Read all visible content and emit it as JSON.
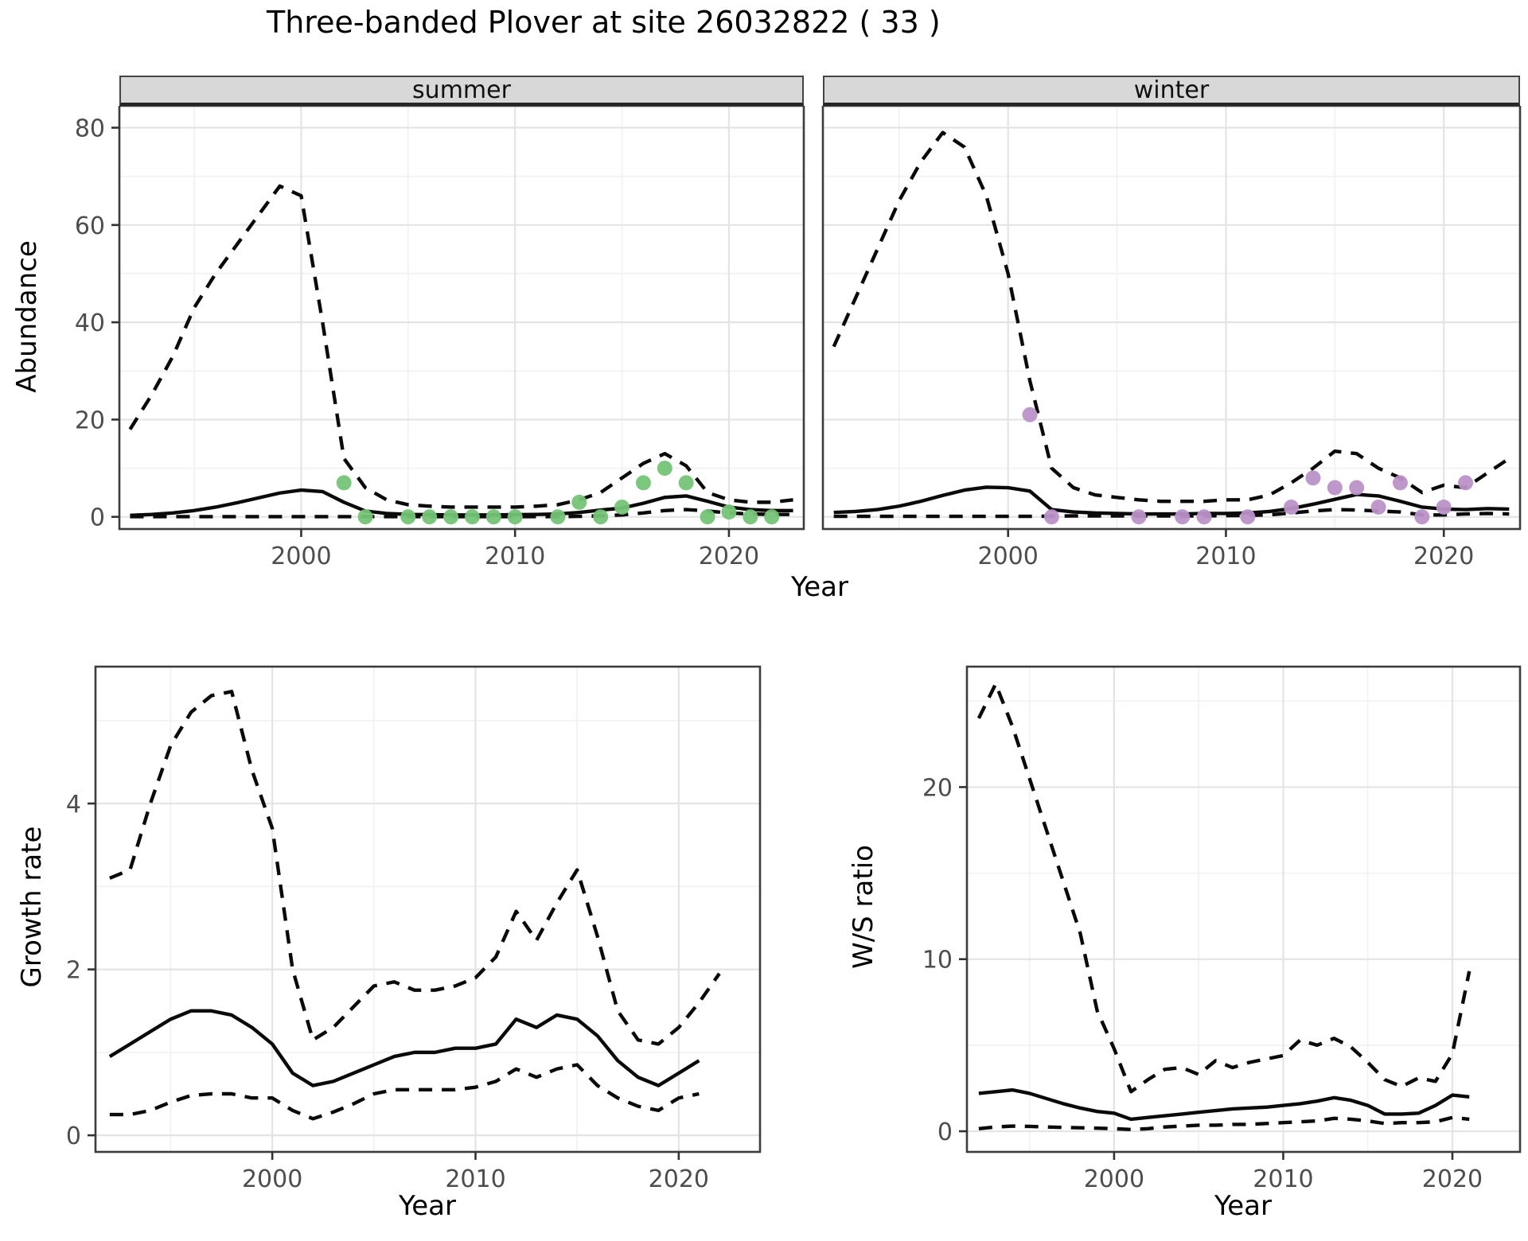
{
  "title": "Three-banded Plover at site 26032822 ( 33 )",
  "colors": {
    "summer_point": "#74C476",
    "winter_point": "#BA92C7",
    "line": "#0a0a0a",
    "grid_major": "#e4e4e4",
    "grid_minor": "#f1f1f1",
    "strip_bg": "#d8d8d8",
    "panel_border": "#3c3c3c",
    "axis_text": "#4d4d4d"
  },
  "chart_data": [
    {
      "type": "line",
      "facet_label": "summer",
      "xlabel": "Year",
      "ylabel": "Abundance",
      "xlim": [
        1991.5,
        2023.5
      ],
      "ylim": [
        -2.5,
        84.5
      ],
      "xticks": [
        2000,
        2010,
        2020
      ],
      "xticks_minor": [
        1995,
        2005,
        2015
      ],
      "yticks": [
        0,
        20,
        40,
        60,
        80
      ],
      "yticks_minor": [
        10,
        30,
        50,
        70
      ],
      "grid": true,
      "legend": "none",
      "series": [
        {
          "name": "ci_upper",
          "line": "dashed",
          "x": [
            1992,
            1993,
            1994,
            1995,
            1996,
            1997,
            1998,
            1999,
            2000,
            2001,
            2002,
            2003,
            2004,
            2005,
            2006,
            2007,
            2008,
            2009,
            2010,
            2011,
            2012,
            2013,
            2014,
            2015,
            2016,
            2017,
            2018,
            2019,
            2020,
            2021,
            2022,
            2023
          ],
          "y": [
            18,
            25,
            33,
            43,
            50,
            56,
            62,
            68,
            66,
            40,
            12,
            6,
            3.5,
            2.5,
            2.2,
            2,
            2,
            2,
            2,
            2.2,
            2.5,
            3.5,
            5,
            8,
            11,
            13,
            10.5,
            5,
            3.5,
            3,
            3,
            3.5
          ]
        },
        {
          "name": "estimate",
          "line": "solid",
          "x": [
            1992,
            1993,
            1994,
            1995,
            1996,
            1997,
            1998,
            1999,
            2000,
            2001,
            2002,
            2003,
            2004,
            2005,
            2006,
            2007,
            2008,
            2009,
            2010,
            2011,
            2012,
            2013,
            2014,
            2015,
            2016,
            2017,
            2018,
            2019,
            2020,
            2021,
            2022,
            2023
          ],
          "y": [
            0.3,
            0.5,
            0.8,
            1.3,
            2,
            2.9,
            3.9,
            4.9,
            5.5,
            5.2,
            3,
            1.2,
            0.7,
            0.5,
            0.45,
            0.4,
            0.4,
            0.4,
            0.45,
            0.5,
            0.6,
            0.9,
            1.4,
            1.8,
            2.8,
            4,
            4.3,
            3.2,
            2,
            1.5,
            1.3,
            1.3
          ]
        },
        {
          "name": "ci_lower",
          "line": "dashed",
          "x": [
            1992,
            1993,
            1994,
            1995,
            1996,
            1997,
            1998,
            1999,
            2000,
            2001,
            2002,
            2003,
            2004,
            2005,
            2006,
            2007,
            2008,
            2009,
            2010,
            2011,
            2012,
            2013,
            2014,
            2015,
            2016,
            2017,
            2018,
            2019,
            2020,
            2021,
            2022,
            2023
          ],
          "y": [
            0.05,
            0.05,
            0.05,
            0.05,
            0.05,
            0.05,
            0.05,
            0.05,
            0.05,
            0.05,
            0.05,
            0.05,
            0.05,
            0.05,
            0.05,
            0.05,
            0.05,
            0.05,
            0.05,
            0.05,
            0.05,
            0.1,
            0.2,
            0.4,
            0.8,
            1.3,
            1.5,
            1.2,
            0.8,
            0.6,
            0.5,
            0.5
          ]
        }
      ],
      "points": {
        "name": "observed_counts",
        "color": "#74C476",
        "x": [
          2002,
          2003,
          2005,
          2006,
          2007,
          2008,
          2009,
          2010,
          2012,
          2013,
          2014,
          2015,
          2016,
          2017,
          2018,
          2019,
          2020,
          2021,
          2022
        ],
        "y": [
          7,
          0,
          0,
          0,
          0,
          0,
          0,
          0,
          0,
          3,
          0,
          2,
          7,
          10,
          7,
          0,
          1,
          0,
          0
        ]
      }
    },
    {
      "type": "line",
      "facet_label": "winter",
      "xlabel": "Year",
      "ylabel": "Abundance",
      "xlim": [
        1991.5,
        2023.5
      ],
      "ylim": [
        -2.5,
        84.5
      ],
      "xticks": [
        2000,
        2010,
        2020
      ],
      "xticks_minor": [
        1995,
        2005,
        2015
      ],
      "yticks": [
        0,
        20,
        40,
        60,
        80
      ],
      "yticks_minor": [
        10,
        30,
        50,
        70
      ],
      "grid": true,
      "legend": "none",
      "series": [
        {
          "name": "ci_upper",
          "line": "dashed",
          "x": [
            1992,
            1993,
            1994,
            1995,
            1996,
            1997,
            1998,
            1999,
            2000,
            2001,
            2002,
            2003,
            2004,
            2005,
            2006,
            2007,
            2008,
            2009,
            2010,
            2011,
            2012,
            2013,
            2014,
            2015,
            2016,
            2017,
            2018,
            2019,
            2020,
            2021,
            2022,
            2023
          ],
          "y": [
            35,
            45,
            55,
            65,
            73,
            79,
            76,
            66,
            50,
            28,
            10,
            6,
            4.5,
            4,
            3.5,
            3.2,
            3.2,
            3.2,
            3.5,
            3.5,
            4.5,
            7,
            10,
            13.5,
            13,
            10,
            8,
            5,
            6.5,
            6,
            9,
            12
          ]
        },
        {
          "name": "estimate",
          "line": "solid",
          "x": [
            1992,
            1993,
            1994,
            1995,
            1996,
            1997,
            1998,
            1999,
            2000,
            2001,
            2002,
            2003,
            2004,
            2005,
            2006,
            2007,
            2008,
            2009,
            2010,
            2011,
            2012,
            2013,
            2014,
            2015,
            2016,
            2017,
            2018,
            2019,
            2020,
            2021,
            2022,
            2023
          ],
          "y": [
            0.9,
            1.1,
            1.5,
            2.2,
            3.2,
            4.4,
            5.5,
            6.1,
            6,
            5.3,
            1.5,
            1,
            0.8,
            0.7,
            0.6,
            0.6,
            0.6,
            0.7,
            0.7,
            0.8,
            1.1,
            1.7,
            2.6,
            3.6,
            4.6,
            4.3,
            3.2,
            2,
            1.6,
            1.5,
            1.7,
            1.6
          ]
        },
        {
          "name": "ci_lower",
          "line": "dashed",
          "x": [
            1992,
            1993,
            1994,
            1995,
            1996,
            1997,
            1998,
            1999,
            2000,
            2001,
            2002,
            2003,
            2004,
            2005,
            2006,
            2007,
            2008,
            2009,
            2010,
            2011,
            2012,
            2013,
            2014,
            2015,
            2016,
            2017,
            2018,
            2019,
            2020,
            2021,
            2022,
            2023
          ],
          "y": [
            0.1,
            0.1,
            0.1,
            0.1,
            0.1,
            0.1,
            0.1,
            0.1,
            0.1,
            0.1,
            0.15,
            0.2,
            0.2,
            0.2,
            0.2,
            0.2,
            0.2,
            0.2,
            0.25,
            0.3,
            0.4,
            0.8,
            1.2,
            1.5,
            1.4,
            1.2,
            1,
            0.4,
            0.4,
            0.6,
            0.7,
            0.6
          ]
        }
      ],
      "points": {
        "name": "observed_counts",
        "color": "#BA92C7",
        "x": [
          2001,
          2002,
          2006,
          2008,
          2009,
          2011,
          2013,
          2014,
          2015,
          2016,
          2017,
          2018,
          2019,
          2020,
          2021
        ],
        "y": [
          21,
          0,
          0,
          0,
          0,
          0,
          2,
          8,
          6,
          6,
          2,
          7,
          0,
          2,
          7
        ]
      }
    },
    {
      "type": "line",
      "facet_label": "",
      "xlabel": "Year",
      "ylabel": "Growth rate",
      "xlim": [
        1991.3,
        2024
      ],
      "ylim": [
        -0.2,
        5.65
      ],
      "xticks": [
        2000,
        2010,
        2020
      ],
      "xticks_minor": [
        1995,
        2005,
        2015
      ],
      "yticks": [
        0,
        2,
        4
      ],
      "yticks_minor": [
        1,
        3,
        5
      ],
      "grid": true,
      "legend": "none",
      "series": [
        {
          "name": "ci_upper",
          "line": "dashed",
          "x": [
            1992,
            1993,
            1994,
            1995,
            1996,
            1997,
            1998,
            1999,
            2000,
            2001,
            2002,
            2003,
            2004,
            2005,
            2006,
            2007,
            2008,
            2009,
            2010,
            2011,
            2012,
            2013,
            2014,
            2015,
            2016,
            2017,
            2018,
            2019,
            2020,
            2021,
            2022
          ],
          "y": [
            3.1,
            3.2,
            4.0,
            4.7,
            5.1,
            5.3,
            5.35,
            4.4,
            3.7,
            2.0,
            1.15,
            1.3,
            1.55,
            1.8,
            1.85,
            1.75,
            1.75,
            1.8,
            1.9,
            2.15,
            2.7,
            2.35,
            2.8,
            3.2,
            2.4,
            1.5,
            1.15,
            1.1,
            1.3,
            1.6,
            1.95
          ]
        },
        {
          "name": "estimate",
          "line": "solid",
          "x": [
            1992,
            1993,
            1994,
            1995,
            1996,
            1997,
            1998,
            1999,
            2000,
            2001,
            2002,
            2003,
            2004,
            2005,
            2006,
            2007,
            2008,
            2009,
            2010,
            2011,
            2012,
            2013,
            2014,
            2015,
            2016,
            2017,
            2018,
            2019,
            2020,
            2021
          ],
          "y": [
            0.95,
            1.1,
            1.25,
            1.4,
            1.5,
            1.5,
            1.45,
            1.3,
            1.1,
            0.75,
            0.6,
            0.65,
            0.75,
            0.85,
            0.95,
            1.0,
            1.0,
            1.05,
            1.05,
            1.1,
            1.4,
            1.3,
            1.45,
            1.4,
            1.2,
            0.9,
            0.7,
            0.6,
            0.75,
            0.9
          ]
        },
        {
          "name": "ci_lower",
          "line": "dashed",
          "x": [
            1992,
            1993,
            1994,
            1995,
            1996,
            1997,
            1998,
            1999,
            2000,
            2001,
            2002,
            2003,
            2004,
            2005,
            2006,
            2007,
            2008,
            2009,
            2010,
            2011,
            2012,
            2013,
            2014,
            2015,
            2016,
            2017,
            2018,
            2019,
            2020,
            2021
          ],
          "y": [
            0.25,
            0.25,
            0.3,
            0.4,
            0.48,
            0.5,
            0.5,
            0.45,
            0.45,
            0.3,
            0.2,
            0.28,
            0.38,
            0.5,
            0.55,
            0.55,
            0.55,
            0.55,
            0.58,
            0.65,
            0.8,
            0.7,
            0.8,
            0.85,
            0.6,
            0.45,
            0.35,
            0.3,
            0.45,
            0.5
          ]
        }
      ],
      "points": null
    },
    {
      "type": "line",
      "facet_label": "",
      "xlabel": "Year",
      "ylabel": "W/S ratio",
      "xlim": [
        1991.3,
        2024
      ],
      "ylim": [
        -1.2,
        27
      ],
      "xticks": [
        2000,
        2010,
        2020
      ],
      "xticks_minor": [
        1995,
        2005,
        2015
      ],
      "yticks": [
        0,
        10,
        20
      ],
      "yticks_minor": [
        5,
        15,
        25
      ],
      "grid": true,
      "legend": "none",
      "series": [
        {
          "name": "ci_upper",
          "line": "dashed",
          "x": [
            1992,
            1993,
            1994,
            1995,
            1996,
            1997,
            1998,
            1999,
            2000,
            2001,
            2002,
            2003,
            2004,
            2005,
            2006,
            2007,
            2008,
            2009,
            2010,
            2011,
            2012,
            2013,
            2014,
            2015,
            2016,
            2017,
            2018,
            2019,
            2020,
            2021
          ],
          "y": [
            24,
            26,
            23.5,
            20.5,
            17.5,
            14.5,
            11.5,
            7,
            4.8,
            2.3,
            3.0,
            3.6,
            3.7,
            3.3,
            4.1,
            3.7,
            4.0,
            4.2,
            4.4,
            5.3,
            5.0,
            5.4,
            4.9,
            4.0,
            3.0,
            2.6,
            3.1,
            2.9,
            4.5,
            9.3
          ]
        },
        {
          "name": "estimate",
          "line": "solid",
          "x": [
            1992,
            1993,
            1994,
            1995,
            1996,
            1997,
            1998,
            1999,
            2000,
            2001,
            2002,
            2003,
            2004,
            2005,
            2006,
            2007,
            2008,
            2009,
            2010,
            2011,
            2012,
            2013,
            2014,
            2015,
            2016,
            2017,
            2018,
            2019,
            2020,
            2021
          ],
          "y": [
            2.2,
            2.3,
            2.4,
            2.2,
            1.9,
            1.6,
            1.35,
            1.15,
            1.05,
            0.7,
            0.8,
            0.9,
            1.0,
            1.1,
            1.2,
            1.3,
            1.35,
            1.4,
            1.5,
            1.6,
            1.75,
            1.95,
            1.8,
            1.5,
            1.0,
            1.0,
            1.05,
            1.5,
            2.1,
            2.0
          ]
        },
        {
          "name": "ci_lower",
          "line": "dashed",
          "x": [
            1992,
            1993,
            1994,
            1995,
            1996,
            1997,
            1998,
            1999,
            2000,
            2001,
            2002,
            2003,
            2004,
            2005,
            2006,
            2007,
            2008,
            2009,
            2010,
            2011,
            2012,
            2013,
            2014,
            2015,
            2016,
            2017,
            2018,
            2019,
            2020,
            2021
          ],
          "y": [
            0.15,
            0.25,
            0.3,
            0.28,
            0.25,
            0.22,
            0.2,
            0.18,
            0.15,
            0.1,
            0.15,
            0.25,
            0.3,
            0.35,
            0.35,
            0.4,
            0.4,
            0.45,
            0.5,
            0.55,
            0.6,
            0.75,
            0.7,
            0.6,
            0.45,
            0.5,
            0.5,
            0.55,
            0.8,
            0.7
          ]
        }
      ],
      "points": null
    }
  ]
}
